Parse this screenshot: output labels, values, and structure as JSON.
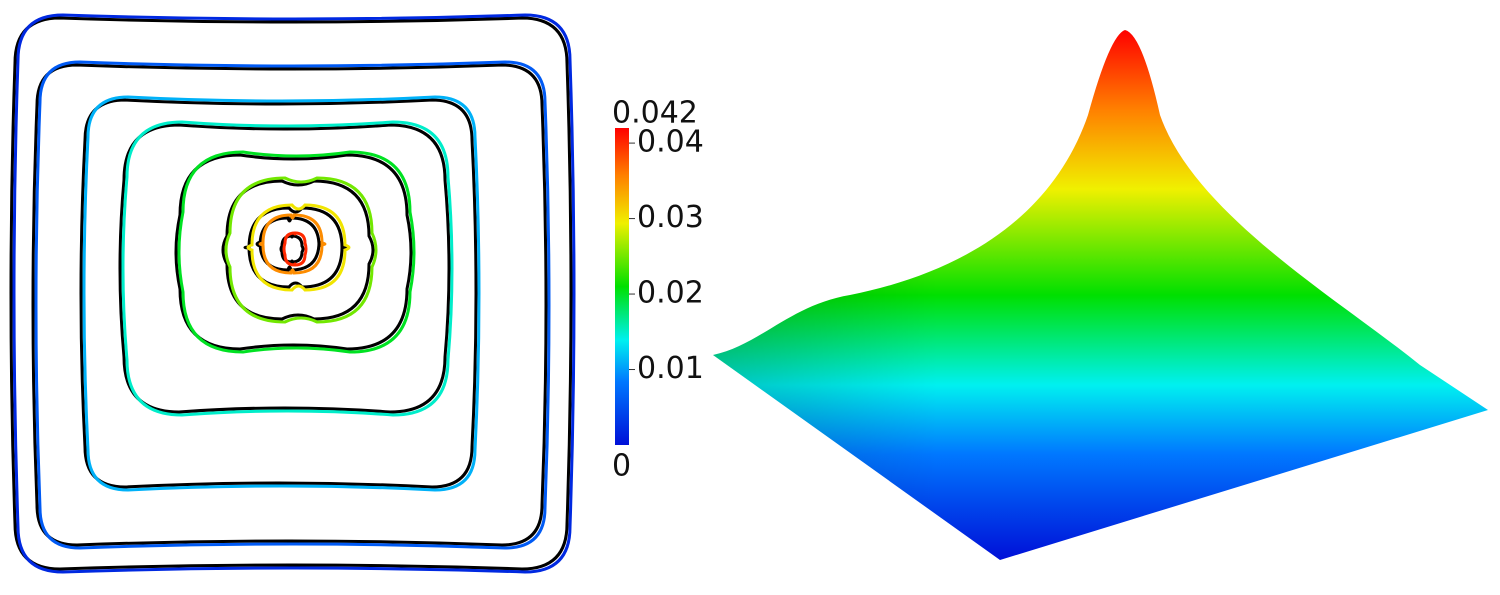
{
  "chart_data": {
    "type": "contour",
    "levels": [
      0.002,
      0.006,
      0.011,
      0.015,
      0.02,
      0.025,
      0.03,
      0.035,
      0.04
    ],
    "clim": [
      0,
      0.042
    ],
    "cticks": [
      0.01,
      0.02,
      0.03,
      0.04
    ],
    "surface_peak": 0.042
  }
}
